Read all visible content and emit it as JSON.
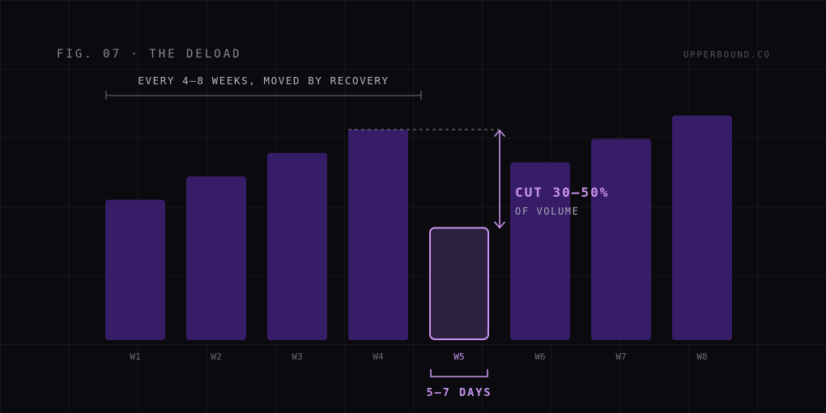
{
  "header": {
    "figure_label": "FIG. 07 · THE DELOAD",
    "brand": "UPPERBOUND.CO"
  },
  "annotations": {
    "frequency": "EVERY 4–8 WEEKS, MOVED BY RECOVERY",
    "cut_title": "CUT 30–50%",
    "cut_subtitle": "OF VOLUME",
    "duration": "5–7 DAYS"
  },
  "colors": {
    "background": "#0b0b0f",
    "bar": "#371d68",
    "deload_bar_fill": "#2d2140",
    "deload_bar_stroke": "#c893ef",
    "accent": "#c893ef",
    "tick_label": "#6e6a7a"
  },
  "chart_data": {
    "type": "bar",
    "categories": [
      "W1",
      "W2",
      "W3",
      "W4",
      "W5",
      "W6",
      "W7",
      "W8"
    ],
    "values": [
      150,
      175,
      200,
      225,
      120,
      190,
      215,
      240
    ],
    "highlight_index": 4,
    "ylim": [
      0,
      270
    ],
    "grid": true,
    "xlabel": "",
    "ylabel": ""
  }
}
